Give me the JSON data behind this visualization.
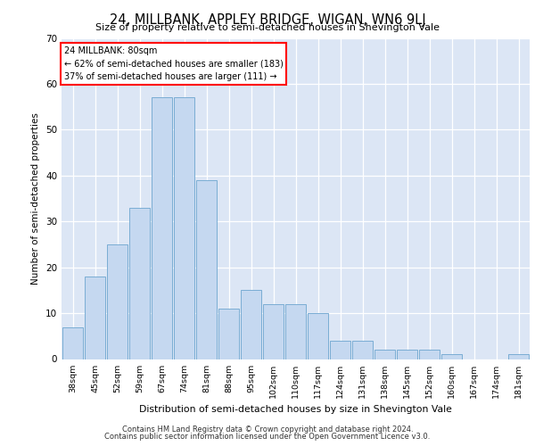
{
  "title": "24, MILLBANK, APPLEY BRIDGE, WIGAN, WN6 9LJ",
  "subtitle": "Size of property relative to semi-detached houses in Shevington Vale",
  "xlabel": "Distribution of semi-detached houses by size in Shevington Vale",
  "ylabel": "Number of semi-detached properties",
  "categories": [
    "38sqm",
    "45sqm",
    "52sqm",
    "59sqm",
    "67sqm",
    "74sqm",
    "81sqm",
    "88sqm",
    "95sqm",
    "102sqm",
    "110sqm",
    "117sqm",
    "124sqm",
    "131sqm",
    "138sqm",
    "145sqm",
    "152sqm",
    "160sqm",
    "167sqm",
    "174sqm",
    "181sqm"
  ],
  "values": [
    7,
    18,
    25,
    33,
    57,
    57,
    39,
    11,
    15,
    12,
    12,
    10,
    4,
    4,
    2,
    2,
    2,
    1,
    0,
    0,
    1
  ],
  "bar_color": "#c5d8f0",
  "bar_edge_color": "#7aadd4",
  "annotation_text_line1": "24 MILLBANK: 80sqm",
  "annotation_text_line2": "← 62% of semi-detached houses are smaller (183)",
  "annotation_text_line3": "37% of semi-detached houses are larger (111) →",
  "ylim": [
    0,
    70
  ],
  "yticks": [
    0,
    10,
    20,
    30,
    40,
    50,
    60,
    70
  ],
  "plot_bg_color": "#dce6f5",
  "footer_line1": "Contains HM Land Registry data © Crown copyright and database right 2024.",
  "footer_line2": "Contains public sector information licensed under the Open Government Licence v3.0."
}
